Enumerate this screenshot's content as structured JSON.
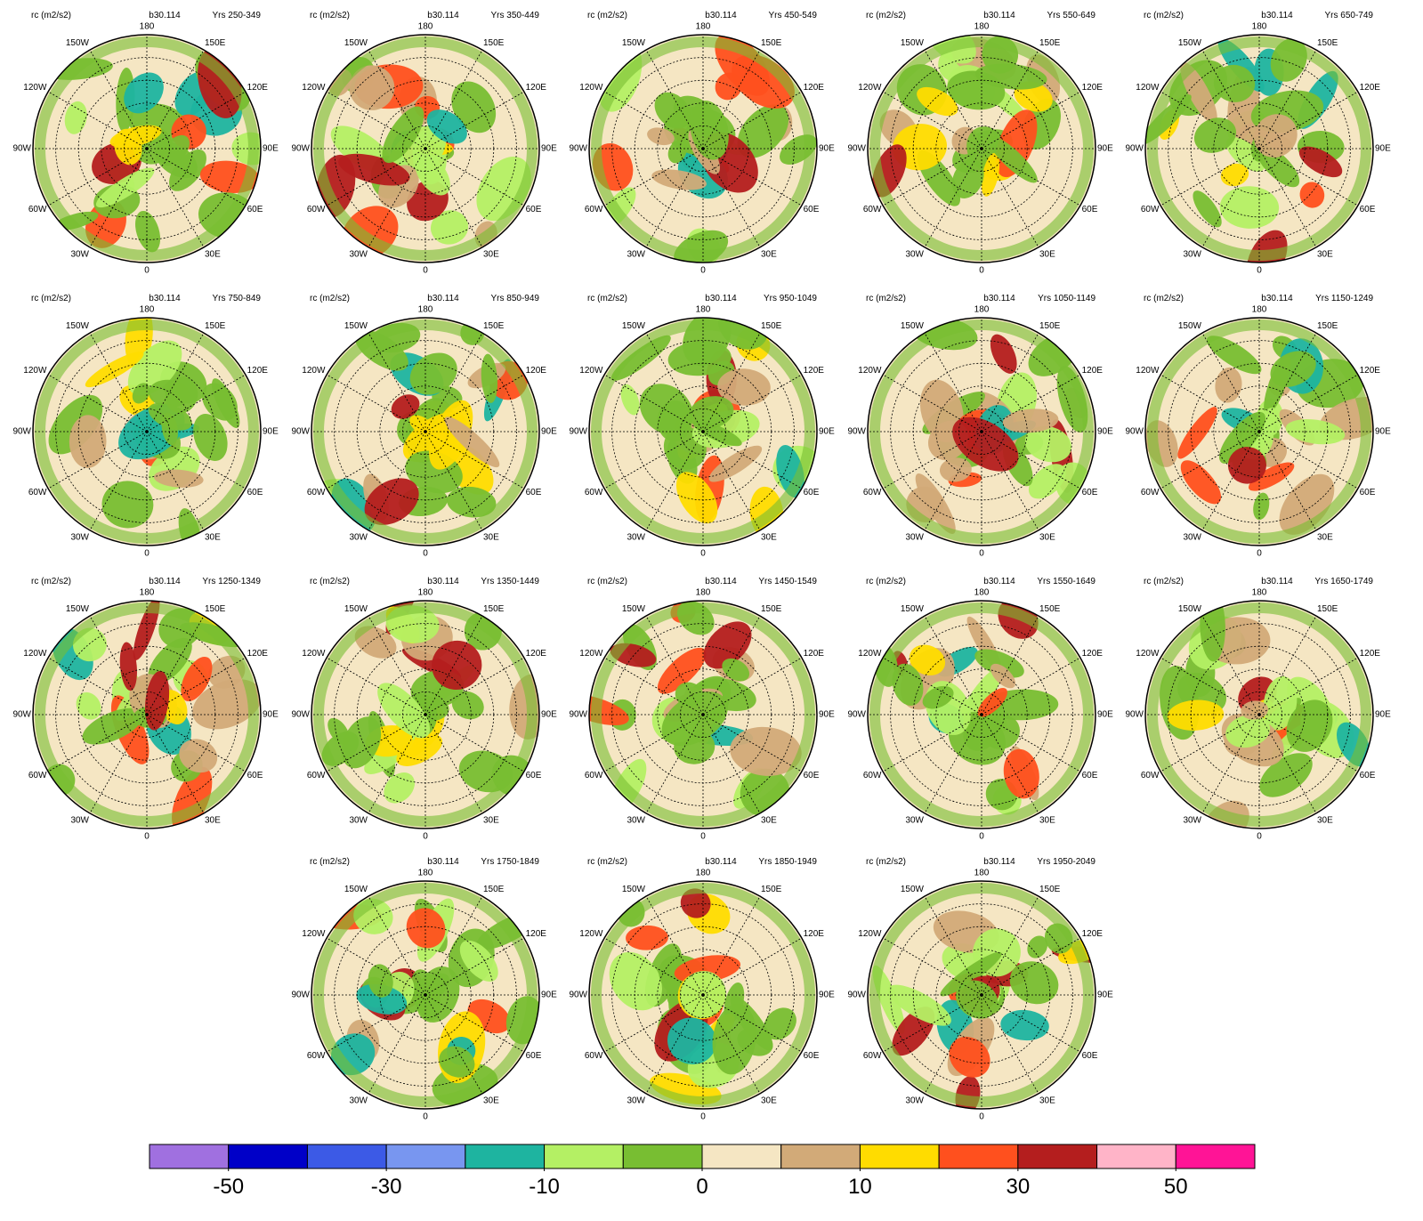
{
  "panels": [
    {
      "units": "rc (m2/s2)",
      "case": "b30.114",
      "years": "Yrs 250-349"
    },
    {
      "units": "rc (m2/s2)",
      "case": "b30.114",
      "years": "Yrs 350-449"
    },
    {
      "units": "rc (m2/s2)",
      "case": "b30.114",
      "years": "Yrs 450-549"
    },
    {
      "units": "rc (m2/s2)",
      "case": "b30.114",
      "years": "Yrs 550-649"
    },
    {
      "units": "rc (m2/s2)",
      "case": "b30.114",
      "years": "Yrs 650-749"
    },
    {
      "units": "rc (m2/s2)",
      "case": "b30.114",
      "years": "Yrs 750-849"
    },
    {
      "units": "rc (m2/s2)",
      "case": "b30.114",
      "years": "Yrs 850-949"
    },
    {
      "units": "rc (m2/s2)",
      "case": "b30.114",
      "years": "Yrs 950-1049"
    },
    {
      "units": "rc (m2/s2)",
      "case": "b30.114",
      "years": "Yrs 1050-1149"
    },
    {
      "units": "rc (m2/s2)",
      "case": "b30.114",
      "years": "Yrs 1150-1249"
    },
    {
      "units": "rc (m2/s2)",
      "case": "b30.114",
      "years": "Yrs 1250-1349"
    },
    {
      "units": "rc (m2/s2)",
      "case": "b30.114",
      "years": "Yrs 1350-1449"
    },
    {
      "units": "rc (m2/s2)",
      "case": "b30.114",
      "years": "Yrs 1450-1549"
    },
    {
      "units": "rc (m2/s2)",
      "case": "b30.114",
      "years": "Yrs 1550-1649"
    },
    {
      "units": "rc (m2/s2)",
      "case": "b30.114",
      "years": "Yrs 1650-1749"
    },
    {
      "units": "rc (m2/s2)",
      "case": "b30.114",
      "years": "Yrs 1750-1849"
    },
    {
      "units": "rc (m2/s2)",
      "case": "b30.114",
      "years": "Yrs 1850-1949"
    },
    {
      "units": "rc (m2/s2)",
      "case": "b30.114",
      "years": "Yrs 1950-2049"
    }
  ],
  "longitude_labels": [
    "180",
    "150E",
    "120E",
    "90E",
    "60E",
    "30E",
    "0",
    "30W",
    "60W",
    "90W",
    "120W",
    "150W"
  ],
  "colorbar": {
    "colors": [
      "#a070e0",
      "#0000c8",
      "#3c5ae6",
      "#7896f0",
      "#1eb4a0",
      "#b4f064",
      "#78be32",
      "#f5e6c3",
      "#d2aa78",
      "#ffdc00",
      "#ff501e",
      "#b41e1e",
      "#ffb4c8",
      "#ff1496"
    ],
    "levels": [
      -50,
      -40,
      -30,
      -20,
      -10,
      -5,
      0,
      5,
      10,
      20,
      30,
      40,
      50
    ],
    "ticks": [
      -50,
      -30,
      -10,
      0,
      10,
      30,
      50
    ]
  }
}
